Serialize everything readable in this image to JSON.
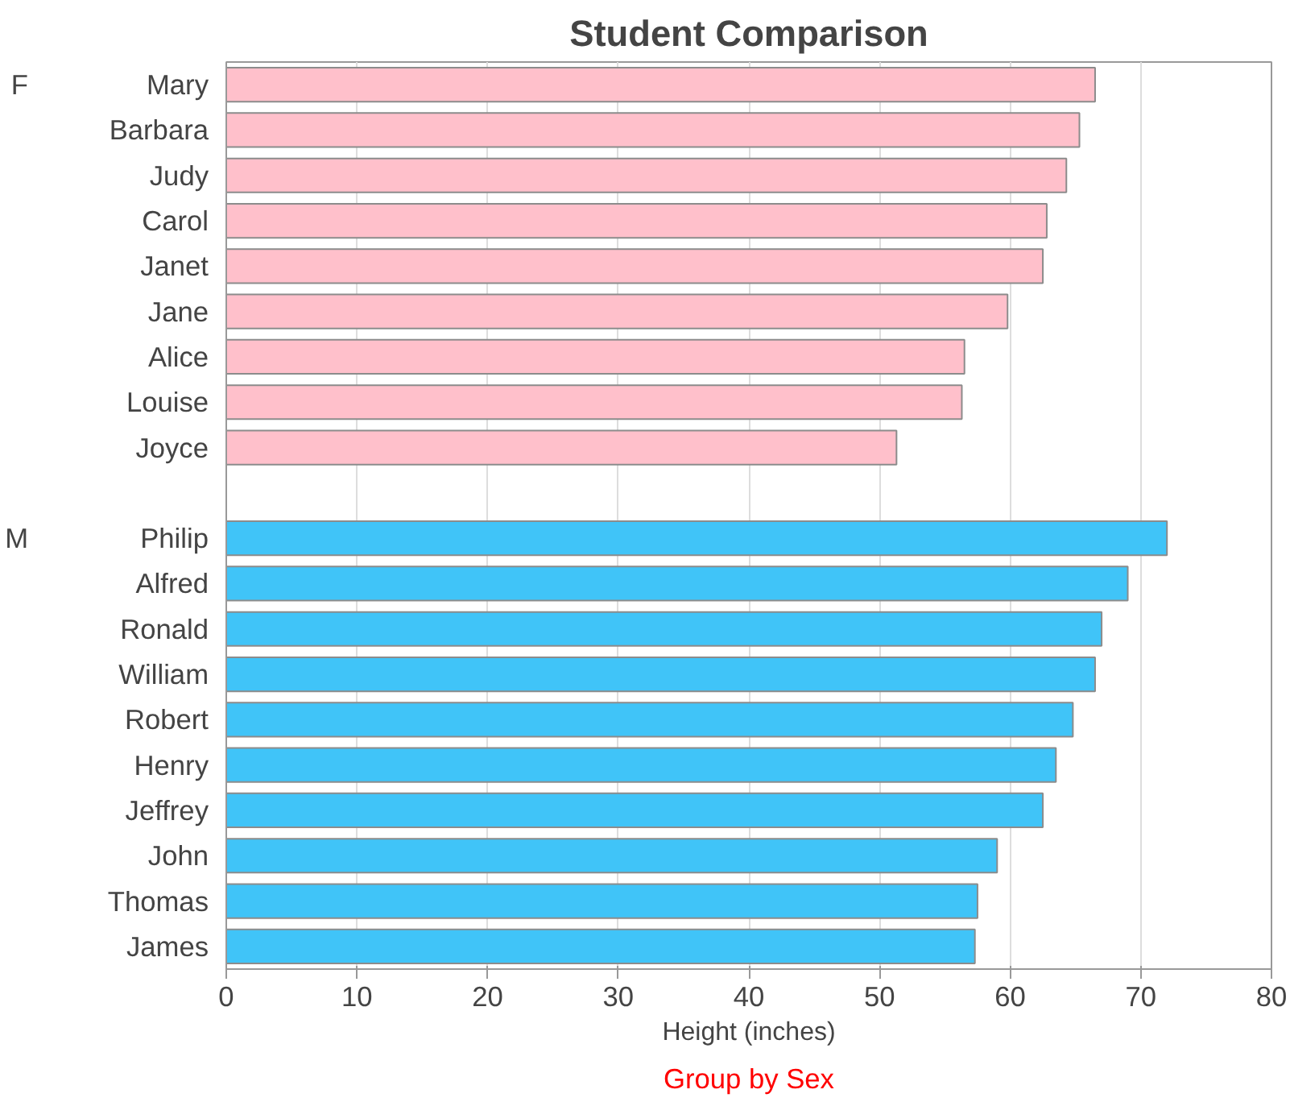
{
  "chart_data": {
    "type": "bar",
    "orientation": "horizontal",
    "title": "Student Comparison",
    "xlabel": "Height (inches)",
    "categories": [
      "Mary",
      "Barbara",
      "Judy",
      "Carol",
      "Janet",
      "Jane",
      "Alice",
      "Louise",
      "Joyce",
      null,
      "Philip",
      "Alfred",
      "Ronald",
      "William",
      "Robert",
      "Henry",
      "Jeffrey",
      "John",
      "Thomas",
      "James"
    ],
    "series": [
      {
        "color": "#ffc0cb",
        "values": [
          66.5,
          65.3,
          64.3,
          62.8,
          62.5,
          59.8,
          56.5,
          56.3,
          51.3,
          null,
          null,
          null,
          null,
          null,
          null,
          null,
          null,
          null,
          null,
          null
        ]
      },
      {
        "color": "#40c4f8",
        "values": [
          null,
          null,
          null,
          null,
          null,
          null,
          null,
          null,
          null,
          null,
          72,
          69,
          67,
          66.5,
          64.8,
          63.5,
          62.5,
          59,
          57.5,
          57.3
        ]
      }
    ],
    "xlim": [
      0,
      80
    ],
    "xticks": [
      0,
      10,
      20,
      30,
      40,
      50,
      60,
      70,
      80
    ],
    "grid": "x",
    "annotations": [
      "F",
      "M",
      "Group by Sex"
    ]
  }
}
